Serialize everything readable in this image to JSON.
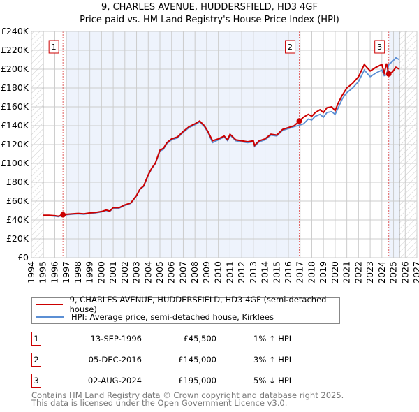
{
  "chart_data": {
    "type": "line",
    "title": "9, CHARLES AVENUE, HUDDERSFIELD, HD3 4GF",
    "subtitle": "Price paid vs. HM Land Registry's House Price Index (HPI)",
    "xlim": [
      1994,
      2027
    ],
    "ylim": [
      0,
      240000
    ],
    "x_ticks": [
      "1994",
      "1995",
      "1996",
      "1997",
      "1998",
      "1999",
      "2000",
      "2001",
      "2002",
      "2003",
      "2004",
      "2005",
      "2006",
      "2007",
      "2008",
      "2009",
      "2010",
      "2011",
      "2012",
      "2013",
      "2014",
      "2015",
      "2016",
      "2017",
      "2018",
      "2019",
      "2020",
      "2021",
      "2022",
      "2023",
      "2024",
      "2025",
      "2026",
      "2027"
    ],
    "y_ticks": [
      "£0",
      "£20K",
      "£40K",
      "£60K",
      "£80K",
      "£100K",
      "£120K",
      "£140K",
      "£160K",
      "£180K",
      "£200K",
      "£220K",
      "£240K"
    ],
    "grid": true,
    "series": [
      {
        "name": "9, CHARLES AVENUE, HUDDERSFIELD, HD3 4GF (semi-detached house)",
        "color": "#cc0000",
        "x": [
          1995,
          1995.5,
          1996,
          1996.3,
          1996.7,
          1997,
          1997.5,
          1998,
          1998.5,
          1999,
          1999.5,
          2000,
          2000.4,
          2000.7,
          2001,
          2001.5,
          2002,
          2002.5,
          2003,
          2003.3,
          2003.6,
          2004,
          2004.3,
          2004.6,
          2005,
          2005.3,
          2005.6,
          2006,
          2006.5,
          2007,
          2007.5,
          2008,
          2008.4,
          2008.8,
          2009.1,
          2009.5,
          2010,
          2010.5,
          2010.8,
          2011,
          2011.5,
          2012,
          2012.5,
          2013,
          2013.1,
          2013.5,
          2014,
          2014.5,
          2015,
          2015.5,
          2016,
          2016.5,
          2016.93,
          2017.3,
          2017.7,
          2018,
          2018.3,
          2018.7,
          2019,
          2019.3,
          2019.7,
          2020,
          2020.3,
          2020.6,
          2020.8,
          2021,
          2021.5,
          2022,
          2022.5,
          2023,
          2023.5,
          2024,
          2024.2,
          2024.4,
          2024.59,
          2024.9,
          2025.2,
          2025.5
        ],
        "y": [
          45000,
          45000,
          44500,
          44000,
          45500,
          46000,
          46500,
          47000,
          46500,
          47500,
          48000,
          49000,
          50500,
          49500,
          53000,
          53000,
          56000,
          58000,
          66000,
          73000,
          76000,
          88000,
          95000,
          100000,
          114000,
          116000,
          122000,
          126000,
          128000,
          134000,
          139000,
          142000,
          145000,
          140000,
          134000,
          124000,
          126000,
          129000,
          125000,
          131000,
          125000,
          124000,
          123000,
          124000,
          119000,
          124000,
          126000,
          131000,
          130000,
          136000,
          138000,
          140000,
          145000,
          149000,
          152000,
          150000,
          154000,
          157000,
          154000,
          159000,
          160000,
          156000,
          165000,
          172000,
          176000,
          180000,
          185000,
          192000,
          205000,
          198000,
          202000,
          205000,
          196000,
          206000,
          195000,
          197000,
          202000,
          200000
        ]
      },
      {
        "name": "HPI: Average price, semi-detached house, Kirklees",
        "color": "#5b8fd4",
        "x": [
          1995,
          1995.5,
          1996,
          1996.3,
          1996.7,
          1997,
          1997.5,
          1998,
          1998.5,
          1999,
          1999.5,
          2000,
          2000.4,
          2000.7,
          2001,
          2001.5,
          2002,
          2002.5,
          2003,
          2003.3,
          2003.6,
          2004,
          2004.3,
          2004.6,
          2005,
          2005.3,
          2005.6,
          2006,
          2006.5,
          2007,
          2007.5,
          2008,
          2008.4,
          2008.8,
          2009.1,
          2009.5,
          2010,
          2010.5,
          2010.8,
          2011,
          2011.5,
          2012,
          2012.5,
          2013,
          2013.1,
          2013.5,
          2014,
          2014.5,
          2015,
          2015.5,
          2016,
          2016.5,
          2016.93,
          2017.3,
          2017.7,
          2018,
          2018.3,
          2018.7,
          2019,
          2019.3,
          2019.7,
          2020,
          2020.3,
          2020.6,
          2020.8,
          2021,
          2021.5,
          2022,
          2022.5,
          2023,
          2023.5,
          2024,
          2024.2,
          2024.4,
          2024.59,
          2024.9,
          2025.2,
          2025.5
        ],
        "y": [
          44500,
          44500,
          44000,
          43500,
          45000,
          45500,
          46000,
          46500,
          46000,
          47000,
          47500,
          48500,
          50000,
          49000,
          52500,
          52500,
          55500,
          57500,
          65500,
          72500,
          75500,
          87500,
          94500,
          99500,
          113000,
          115000,
          121000,
          125000,
          127000,
          133000,
          138000,
          141000,
          144000,
          139000,
          133000,
          122000,
          125000,
          128000,
          124000,
          130000,
          124000,
          123000,
          122000,
          123000,
          118000,
          123000,
          125000,
          130000,
          129000,
          135000,
          137000,
          139000,
          140500,
          142000,
          147000,
          146000,
          150000,
          152000,
          149000,
          154000,
          155000,
          152000,
          160000,
          168000,
          172000,
          175000,
          180000,
          187000,
          199000,
          192000,
          196000,
          199000,
          193000,
          194000,
          205000,
          208000,
          212000,
          210000
        ]
      }
    ],
    "sales": [
      {
        "label": "1",
        "x": 1996.7,
        "y": 45500
      },
      {
        "label": "2",
        "x": 2016.93,
        "y": 145000
      },
      {
        "label": "3",
        "x": 2024.59,
        "y": 195000
      }
    ],
    "shaded_ranges": [
      [
        1997,
        2016.93
      ],
      [
        2024.59,
        2025.5
      ]
    ],
    "data_end": 2025.5
  },
  "legend": {
    "property": "9, CHARLES AVENUE, HUDDERSFIELD, HD3 4GF (semi-detached house)",
    "hpi": "HPI: Average price, semi-detached house, Kirklees"
  },
  "transactions": [
    {
      "num": "1",
      "date": "13-SEP-1996",
      "price": "£45,500",
      "hpi": "1% ↑ HPI"
    },
    {
      "num": "2",
      "date": "05-DEC-2016",
      "price": "£145,000",
      "hpi": "3% ↑ HPI"
    },
    {
      "num": "3",
      "date": "02-AUG-2024",
      "price": "£195,000",
      "hpi": "5% ↓ HPI"
    }
  ],
  "footer": {
    "line1": "Contains HM Land Registry data © Crown copyright and database right 2025.",
    "line2": "This data is licensed under the Open Government Licence v3.0."
  },
  "colors": {
    "property": "#cc0000",
    "hpi": "#5b8fd4",
    "shade": "#eef3fc",
    "grid": "#cccccc"
  }
}
